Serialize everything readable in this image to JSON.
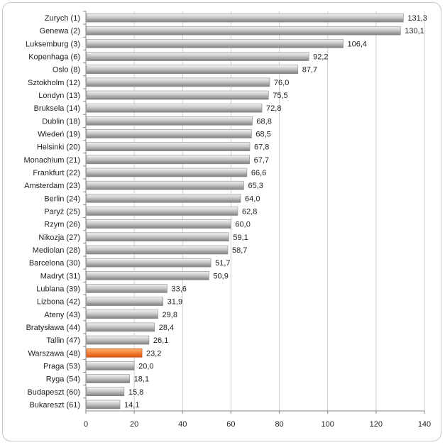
{
  "chart_data": {
    "type": "bar",
    "orientation": "horizontal",
    "categories": [
      "Zurych (1)",
      "Genewa (2)",
      "Luksemburg (3)",
      "Kopenhaga (6)",
      "Oslo (8)",
      "Sztokholm (12)",
      "Londyn (13)",
      "Bruksela (14)",
      "Dublin (18)",
      "Wiedeń (19)",
      "Helsinki (20)",
      "Monachium (21)",
      "Frankfurt (22)",
      "Amsterdam (23)",
      "Berlin (24)",
      "Paryż (25)",
      "Rzym (26)",
      "Nikozja (27)",
      "Mediolan (28)",
      "Barcelona (30)",
      "Madryt (31)",
      "Lublana (39)",
      "Lizbona (42)",
      "Ateny (43)",
      "Bratysława (44)",
      "Tallin (47)",
      "Warszawa (48)",
      "Praga (53)",
      "Ryga (54)",
      "Budapeszt (60)",
      "Bukareszt (61)"
    ],
    "values": [
      131.3,
      130.1,
      106.4,
      92.2,
      87.7,
      76.0,
      75.5,
      72.8,
      68.8,
      68.5,
      67.8,
      67.7,
      66.6,
      65.3,
      64.0,
      62.8,
      60.0,
      59.1,
      58.7,
      51.7,
      50.9,
      33.6,
      31.9,
      29.8,
      28.4,
      26.1,
      23.2,
      20.0,
      18.1,
      15.8,
      14.1
    ],
    "value_labels": [
      "131,3",
      "130,1",
      "106,4",
      "92,2",
      "87,7",
      "76,0",
      "75,5",
      "72,8",
      "68,8",
      "68,5",
      "67,8",
      "67,7",
      "66,6",
      "65,3",
      "64,0",
      "62,8",
      "60,0",
      "59,1",
      "58,7",
      "51,7",
      "50,9",
      "33,6",
      "31,9",
      "29,8",
      "28,4",
      "26,1",
      "23,2",
      "20,0",
      "18,1",
      "15,8",
      "14,1"
    ],
    "highlight_category": "Warszawa (48)",
    "xlim": [
      0,
      140
    ],
    "x_ticks": [
      0,
      20,
      40,
      60,
      80,
      100,
      120,
      140
    ],
    "grid": true,
    "colors": {
      "bar_light": "#f4f4f4",
      "bar_mid": "#c8c8c8",
      "bar_dark": "#7e7e7e",
      "highlight_light": "#ffb06a",
      "highlight_dark": "#e0520a",
      "grid": "#d0d0d0",
      "axis": "#888888"
    }
  }
}
